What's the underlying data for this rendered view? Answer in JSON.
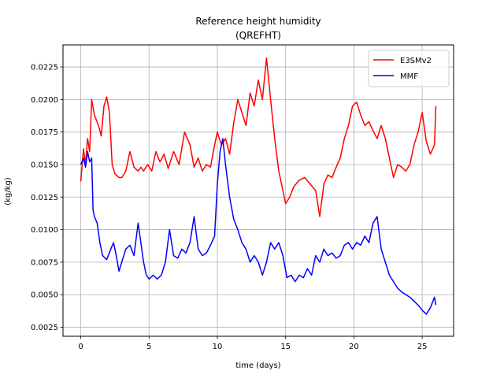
{
  "chart_data": {
    "type": "line",
    "title": "Reference height humidity",
    "subtitle": "(QREFHT)",
    "xlabel": "time (days)",
    "ylabel": "(kg/kg)",
    "xlim": [
      -1.3,
      27.3
    ],
    "ylim": [
      0.0018,
      0.0242
    ],
    "xticks": [
      0,
      5,
      10,
      15,
      20,
      25
    ],
    "xtick_labels": [
      "0",
      "5",
      "10",
      "15",
      "20",
      "25"
    ],
    "yticks": [
      0.0025,
      0.005,
      0.0075,
      0.01,
      0.0125,
      0.015,
      0.0175,
      0.02,
      0.0225
    ],
    "ytick_labels": [
      "0.0025",
      "0.0050",
      "0.0075",
      "0.0100",
      "0.0125",
      "0.0150",
      "0.0175",
      "0.0200",
      "0.0225"
    ],
    "grid": true,
    "legend_position": "top-right",
    "series": [
      {
        "name": "E3SMv2",
        "color": "#ff0000",
        "x": [
          0,
          0.2,
          0.35,
          0.5,
          0.65,
          0.8,
          1.0,
          1.3,
          1.5,
          1.7,
          1.9,
          2.1,
          2.3,
          2.5,
          2.8,
          3.0,
          3.3,
          3.6,
          3.9,
          4.2,
          4.4,
          4.6,
          4.9,
          5.2,
          5.5,
          5.8,
          6.1,
          6.4,
          6.8,
          7.2,
          7.6,
          8.0,
          8.3,
          8.6,
          8.9,
          9.2,
          9.5,
          9.8,
          10.0,
          10.3,
          10.6,
          10.9,
          11.2,
          11.5,
          11.8,
          12.1,
          12.4,
          12.7,
          13.0,
          13.3,
          13.6,
          13.9,
          14.2,
          14.5,
          14.8,
          15.0,
          15.3,
          15.6,
          16.0,
          16.4,
          16.8,
          17.2,
          17.5,
          17.8,
          18.1,
          18.4,
          18.7,
          19.0,
          19.3,
          19.6,
          19.9,
          20.2,
          20.5,
          20.8,
          21.1,
          21.4,
          21.7,
          22.0,
          22.3,
          22.6,
          22.9,
          23.2,
          23.5,
          23.8,
          24.1,
          24.4,
          24.7,
          25.0,
          25.3,
          25.6,
          25.9,
          26.0
        ],
        "y": [
          0.0137,
          0.0162,
          0.015,
          0.017,
          0.016,
          0.02,
          0.0188,
          0.018,
          0.0172,
          0.0195,
          0.0202,
          0.019,
          0.015,
          0.0143,
          0.014,
          0.014,
          0.0145,
          0.016,
          0.0148,
          0.0145,
          0.0148,
          0.0145,
          0.015,
          0.0145,
          0.016,
          0.0152,
          0.0158,
          0.0147,
          0.016,
          0.015,
          0.0175,
          0.0165,
          0.0148,
          0.0155,
          0.0145,
          0.015,
          0.0148,
          0.0165,
          0.0175,
          0.0165,
          0.017,
          0.0158,
          0.0182,
          0.02,
          0.019,
          0.018,
          0.0205,
          0.0195,
          0.0215,
          0.02,
          0.0232,
          0.02,
          0.017,
          0.0145,
          0.013,
          0.012,
          0.0125,
          0.0133,
          0.0138,
          0.014,
          0.0135,
          0.013,
          0.011,
          0.0135,
          0.0142,
          0.014,
          0.0148,
          0.0155,
          0.017,
          0.018,
          0.0195,
          0.0198,
          0.0188,
          0.018,
          0.0183,
          0.0176,
          0.017,
          0.018,
          0.017,
          0.0155,
          0.014,
          0.015,
          0.0148,
          0.0145,
          0.015,
          0.0165,
          0.0175,
          0.019,
          0.0168,
          0.0158,
          0.0165,
          0.0195
        ]
      },
      {
        "name": "MMF",
        "color": "#0000ff",
        "x": [
          0,
          0.2,
          0.35,
          0.5,
          0.65,
          0.8,
          0.9,
          1.0,
          1.2,
          1.4,
          1.6,
          1.9,
          2.2,
          2.4,
          2.6,
          2.8,
          3.0,
          3.3,
          3.6,
          3.9,
          4.2,
          4.4,
          4.6,
          4.8,
          5.0,
          5.3,
          5.6,
          5.9,
          6.2,
          6.5,
          6.8,
          7.1,
          7.4,
          7.7,
          8.0,
          8.3,
          8.6,
          8.9,
          9.2,
          9.5,
          9.8,
          10.0,
          10.2,
          10.4,
          10.6,
          10.9,
          11.2,
          11.5,
          11.8,
          12.1,
          12.4,
          12.7,
          13.0,
          13.3,
          13.6,
          13.9,
          14.2,
          14.5,
          14.8,
          15.1,
          15.4,
          15.7,
          16.0,
          16.3,
          16.6,
          16.9,
          17.2,
          17.5,
          17.8,
          18.1,
          18.4,
          18.7,
          19.0,
          19.3,
          19.6,
          19.9,
          20.2,
          20.5,
          20.8,
          21.1,
          21.4,
          21.7,
          22.0,
          22.3,
          22.6,
          22.9,
          23.2,
          23.5,
          23.8,
          24.1,
          24.4,
          24.7,
          25.0,
          25.3,
          25.6,
          25.9,
          26.0
        ],
        "y": [
          0.015,
          0.0155,
          0.0148,
          0.016,
          0.0152,
          0.0155,
          0.0115,
          0.011,
          0.0105,
          0.009,
          0.008,
          0.0077,
          0.0085,
          0.009,
          0.008,
          0.0068,
          0.0075,
          0.0085,
          0.0088,
          0.008,
          0.0105,
          0.009,
          0.0075,
          0.0065,
          0.0062,
          0.0065,
          0.0062,
          0.0065,
          0.0075,
          0.01,
          0.008,
          0.0078,
          0.0085,
          0.0082,
          0.009,
          0.011,
          0.0085,
          0.008,
          0.0082,
          0.0088,
          0.0095,
          0.0135,
          0.016,
          0.017,
          0.015,
          0.0125,
          0.0108,
          0.01,
          0.009,
          0.0085,
          0.0075,
          0.008,
          0.0075,
          0.0065,
          0.0075,
          0.009,
          0.0085,
          0.009,
          0.008,
          0.0063,
          0.0065,
          0.006,
          0.0065,
          0.0063,
          0.007,
          0.0065,
          0.008,
          0.0075,
          0.0085,
          0.008,
          0.0082,
          0.0078,
          0.008,
          0.0088,
          0.009,
          0.0085,
          0.009,
          0.0088,
          0.0095,
          0.009,
          0.0105,
          0.011,
          0.0085,
          0.0075,
          0.0065,
          0.006,
          0.0055,
          0.0052,
          0.005,
          0.0048,
          0.0045,
          0.0042,
          0.0038,
          0.0035,
          0.004,
          0.0048,
          0.0042
        ]
      }
    ]
  }
}
